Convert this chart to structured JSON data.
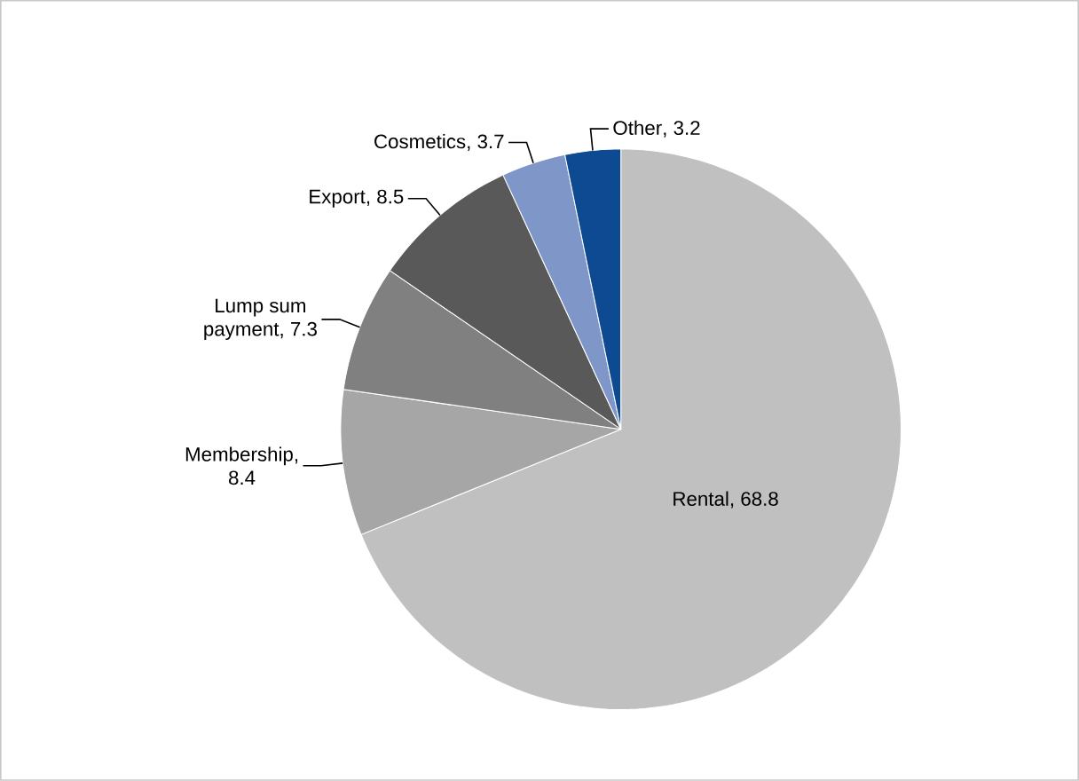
{
  "chart_data": {
    "type": "pie",
    "categories": [
      "Rental",
      "Membership",
      "Lump sum payment",
      "Export",
      "Cosmetics",
      "Other"
    ],
    "values": [
      68.8,
      8.4,
      7.3,
      8.5,
      3.7,
      3.2
    ],
    "colors": [
      "#c0c0c0",
      "#a6a6a6",
      "#808080",
      "#595959",
      "#7f96c8",
      "#0d4a92"
    ],
    "value_labels": [
      ", 68.8",
      ", 8.4",
      ", 7.3",
      ", 8.5",
      ", 3.7",
      ", 3.2"
    ]
  }
}
